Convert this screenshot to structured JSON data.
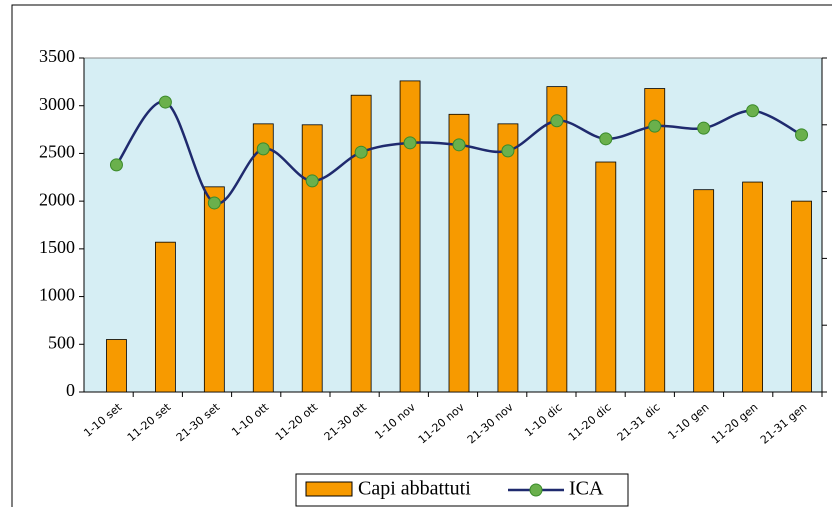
{
  "chart_data": {
    "type": "bar_line",
    "categories": [
      "1-10 set",
      "11-20 set",
      "21-30 set",
      "1-10 ott",
      "11-20 ott",
      "21-30 ott",
      "1-10 nov",
      "11-20 nov",
      "21-30 nov",
      "1-10 dic",
      "11-20 dic",
      "21-31 dic",
      "1-10 gen",
      "11-20 gen",
      "21-31 gen"
    ],
    "series": [
      {
        "name": "Capi abbattuti",
        "type": "bar",
        "color": "#f79a00",
        "values": [
          550,
          1570,
          2150,
          2810,
          2800,
          3110,
          3260,
          2910,
          2810,
          3200,
          2410,
          3180,
          2120,
          2200,
          2000
        ]
      },
      {
        "name": "ICA",
        "type": "line",
        "axis": "y2",
        "color": "#1f2a6e",
        "marker_color": "#6ab04c",
        "values": [
          3.4,
          4.34,
          2.83,
          3.64,
          3.16,
          3.59,
          3.73,
          3.7,
          3.61,
          4.06,
          3.79,
          3.98,
          3.95,
          4.21,
          3.85
        ]
      }
    ],
    "ylim": [
      0,
      3500
    ],
    "yticks": [
      0,
      500,
      1000,
      1500,
      2000,
      2500,
      3000,
      3500
    ],
    "y2lim": [
      0,
      5
    ],
    "y2ticks": [
      0,
      1,
      2,
      3,
      4,
      5
    ],
    "legend": "bottom"
  }
}
